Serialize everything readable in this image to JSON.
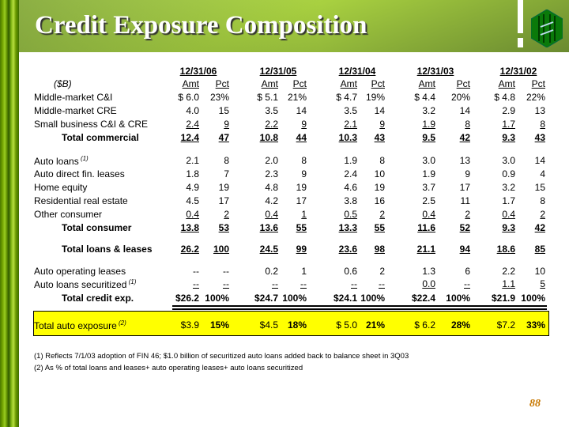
{
  "title": "Credit Exposure Composition",
  "unit_label": "($B)",
  "periods": [
    "12/31/06",
    "12/31/05",
    "12/31/04",
    "12/31/03",
    "12/31/02"
  ],
  "amt_label": "Amt",
  "pct_label": "Pct",
  "rows": [
    {
      "label": "Middle-market C&I",
      "style": "normal",
      "cells": [
        "$ 6.0",
        "23%",
        "$ 5.1",
        "21%",
        "$ 4.7",
        "19%",
        "$  4.4",
        "20%",
        "$   4.8",
        "22%"
      ]
    },
    {
      "label": "Middle-market CRE",
      "style": "normal",
      "cells": [
        "4.0",
        "15",
        "3.5",
        "14",
        "3.5",
        "14",
        "3.2",
        "14",
        "2.9",
        "13"
      ]
    },
    {
      "label": "Small business C&I & CRE",
      "style": "under",
      "cells": [
        "2.4",
        "9",
        "2.2",
        "9",
        "2.1",
        "9",
        "1.9",
        "8",
        "1.7",
        "8"
      ]
    },
    {
      "label": "Total commercial",
      "style": "total",
      "cells": [
        "12.4",
        "47",
        "10.8",
        "44",
        "10.3",
        "43",
        "9.5",
        "42",
        "9.3",
        "43"
      ]
    },
    {
      "label": "Auto loans",
      "sup": "(1)",
      "style": "normal",
      "cells": [
        "2.1",
        "8",
        "2.0",
        "8",
        "1.9",
        "8",
        "3.0",
        "13",
        "3.0",
        "14"
      ]
    },
    {
      "label": "Auto direct fin. leases",
      "style": "normal",
      "cells": [
        "1.8",
        "7",
        "2.3",
        "9",
        "2.4",
        "10",
        "1.9",
        "9",
        "0.9",
        "4"
      ]
    },
    {
      "label": "Home equity",
      "style": "normal",
      "cells": [
        "4.9",
        "19",
        "4.8",
        "19",
        "4.6",
        "19",
        "3.7",
        "17",
        "3.2",
        "15"
      ]
    },
    {
      "label": "Residential real estate",
      "style": "normal",
      "cells": [
        "4.5",
        "17",
        "4.2",
        "17",
        "3.8",
        "16",
        "2.5",
        "11",
        "1.7",
        "8"
      ]
    },
    {
      "label": "Other consumer",
      "style": "under",
      "cells": [
        "0.4",
        "2",
        "0.4",
        "1",
        "0.5",
        "2",
        "0.4",
        "2",
        "0.4",
        "2"
      ]
    },
    {
      "label": "Total consumer",
      "style": "total",
      "cells": [
        "13.8",
        "53",
        "13.6",
        "55",
        "13.3",
        "55",
        "11.6",
        "52",
        "9.3",
        "42"
      ]
    },
    {
      "label": "Total loans & leases",
      "style": "total",
      "cells": [
        "26.2",
        "100",
        "24.5",
        "99",
        "23.6",
        "98",
        "21.1",
        "94",
        "18.6",
        "85"
      ]
    },
    {
      "label": "Auto operating leases",
      "style": "normal",
      "cells": [
        "--",
        "--",
        "0.2",
        "1",
        "0.6",
        "2",
        "1.3",
        "6",
        "2.2",
        "10"
      ]
    },
    {
      "label": "Auto loans securitized",
      "sup": "(1)",
      "style": "under",
      "cells": [
        "--",
        "--",
        "--",
        "--",
        "--",
        "--",
        "0.0",
        "--",
        "1.1",
        "5"
      ]
    },
    {
      "label": "Total credit exp.",
      "style": "bold",
      "cells": [
        "$26.2",
        "100%",
        "$24.7",
        "100%",
        "$24.1",
        "100%",
        "$22.4",
        "100%",
        "$21.9",
        "100%"
      ]
    }
  ],
  "auto_exposure": {
    "label": "Total auto exposure",
    "sup": "(2)",
    "cells": [
      "$3.9",
      "15%",
      "$4.5",
      "18%",
      "$  5.0",
      "21%",
      "$  6.2",
      "28%",
      "$7.2",
      "33%"
    ]
  },
  "footnotes": [
    "(1)  Reflects 7/1/03 adoption of FIN 46; $1.0 billion of securitized auto loans added back to balance sheet in 3Q03",
    "(2)  As % of total loans and leases+ auto operating leases+ auto loans securitized"
  ],
  "page_number": "88",
  "colors": {
    "highlight": "#ffff00",
    "page_number": "#c87800"
  }
}
